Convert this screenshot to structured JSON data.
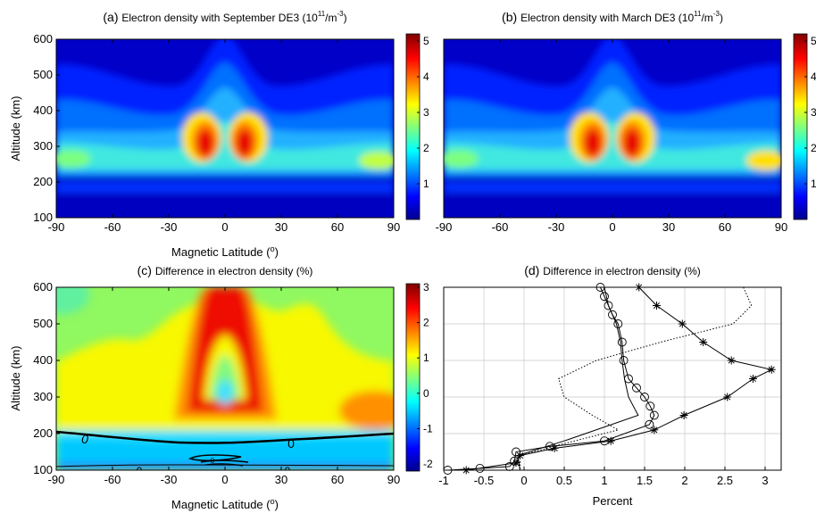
{
  "figure": {
    "panels": [
      {
        "id": "a",
        "type": "heatmap",
        "title_prefix": "(a)",
        "title_text": "Electron density with September DE3 (10",
        "title_sup1": "11",
        "title_mid": "/m",
        "title_sup2": "-3",
        "title_suffix": ")",
        "xlabel": "Magnetic Latitude (",
        "xlabel_sup": "o",
        "xlabel_suffix": ")",
        "ylabel": "Altitude (km)",
        "xticks": [
          "-90",
          "-60",
          "-30",
          "0",
          "30",
          "60",
          "90"
        ],
        "yticks": [
          "100",
          "200",
          "300",
          "400",
          "500",
          "600"
        ],
        "colorbar_ticks": [
          "1",
          "2",
          "3",
          "4",
          "5"
        ],
        "colorbar_range": [
          0,
          5.2
        ]
      },
      {
        "id": "b",
        "type": "heatmap",
        "title_prefix": "(b)",
        "title_text": "Electron density with March DE3 (10",
        "title_sup1": "11",
        "title_mid": "/m",
        "title_sup2": "-3",
        "title_suffix": ")",
        "xticks": [
          "-90",
          "-60",
          "-30",
          "0",
          "30",
          "60",
          "90"
        ],
        "colorbar_ticks": [
          "1",
          "2",
          "3",
          "4",
          "5"
        ],
        "colorbar_range": [
          0,
          5.2
        ]
      },
      {
        "id": "c",
        "type": "heatmap",
        "title_prefix": "(c)",
        "title_text": "Difference in electron density (%)",
        "xlabel": "Magnetic Latitude (",
        "xlabel_sup": "o",
        "xlabel_suffix": ")",
        "ylabel": "Altitude (km)",
        "xticks": [
          "-90",
          "-60",
          "-30",
          "0",
          "30",
          "60",
          "90"
        ],
        "yticks": [
          "100",
          "200",
          "300",
          "400",
          "500",
          "600"
        ],
        "colorbar_ticks": [
          "-2",
          "-1",
          "0",
          "1",
          "2",
          "3"
        ],
        "colorbar_range": [
          -2.2,
          3.1
        ],
        "contour_labels": [
          "0",
          "0",
          "0",
          "0",
          "0"
        ]
      },
      {
        "id": "d",
        "type": "line",
        "title_prefix": "(d)",
        "title_text": "Difference in electron density (%)",
        "xlabel": "Percent",
        "xticks": [
          "-1",
          "-0.5",
          "0",
          "0.5",
          "1",
          "1.5",
          "2",
          "2.5",
          "3"
        ],
        "xlim": [
          -1,
          3.2
        ],
        "ylim": [
          100,
          600
        ]
      }
    ]
  },
  "chart_data": [
    {
      "type": "heatmap",
      "title": "(a) Electron density with September DE3 (10^11/m^-3)",
      "xlabel": "Magnetic Latitude (o)",
      "ylabel": "Altitude (km)",
      "xlim": [
        -90,
        90
      ],
      "ylim": [
        100,
        600
      ],
      "colorbar": {
        "min": 0,
        "max": 5.2,
        "ticks": [
          1,
          2,
          3,
          4,
          5
        ]
      },
      "features": {
        "peaks": [
          {
            "lat": -12,
            "alt": 300,
            "value": 5.0
          },
          {
            "lat": 12,
            "alt": 300,
            "value": 5.0
          },
          {
            "lat": -80,
            "alt": 260,
            "value": 2.3
          },
          {
            "lat": 80,
            "alt": 260,
            "value": 2.4
          }
        ]
      }
    },
    {
      "type": "heatmap",
      "title": "(b) Electron density with March DE3 (10^11/m^-3)",
      "xlabel": "Magnetic Latitude (o)",
      "xlim": [
        -90,
        90
      ],
      "ylim": [
        100,
        600
      ],
      "colorbar": {
        "min": 0,
        "max": 5.2,
        "ticks": [
          1,
          2,
          3,
          4,
          5
        ]
      },
      "features": {
        "peaks": [
          {
            "lat": -12,
            "alt": 300,
            "value": 5.0
          },
          {
            "lat": 12,
            "alt": 300,
            "value": 5.0
          },
          {
            "lat": -80,
            "alt": 260,
            "value": 2.3
          },
          {
            "lat": 80,
            "alt": 260,
            "value": 2.6
          }
        ]
      }
    },
    {
      "type": "heatmap",
      "title": "(c) Difference in electron density (%)",
      "xlabel": "Magnetic Latitude (o)",
      "ylabel": "Altitude (km)",
      "xlim": [
        -90,
        90
      ],
      "ylim": [
        100,
        600
      ],
      "colorbar": {
        "min": -2.2,
        "max": 3.1,
        "ticks": [
          -2,
          -1,
          0,
          1,
          2,
          3
        ]
      },
      "zero_contour_altitude_km": 180,
      "features": {
        "max": {
          "lat": 0,
          "alt": 550,
          "value": 3.0
        },
        "local_min": {
          "lat": 0,
          "alt": 310,
          "value": 0.0
        },
        "min": {
          "lat": 0,
          "alt": 110,
          "value": -2.1
        }
      }
    },
    {
      "type": "line",
      "title": "(d) Difference in electron density (%)",
      "xlabel": "Percent",
      "xlim": [
        -1,
        3.2
      ],
      "ylim": [
        100,
        600
      ],
      "series": [
        {
          "style": "solid-star",
          "points": [
            [
              1.43,
              600
            ],
            [
              1.65,
              550
            ],
            [
              1.97,
              500
            ],
            [
              2.23,
              450
            ],
            [
              2.58,
              400
            ],
            [
              3.08,
              375
            ],
            [
              2.85,
              350
            ],
            [
              2.53,
              300
            ],
            [
              1.99,
              250
            ],
            [
              1.62,
              210
            ],
            [
              1.08,
              180
            ],
            [
              0.38,
              160
            ],
            [
              -0.05,
              140
            ],
            [
              -0.1,
              120
            ],
            [
              -0.72,
              100
            ]
          ]
        },
        {
          "style": "solid-circle",
          "points": [
            [
              0.95,
              600
            ],
            [
              1.0,
              575
            ],
            [
              1.05,
              550
            ],
            [
              1.1,
              525
            ],
            [
              1.17,
              500
            ],
            [
              1.22,
              450
            ],
            [
              1.24,
              400
            ],
            [
              1.3,
              350
            ],
            [
              1.4,
              325
            ],
            [
              1.5,
              300
            ],
            [
              1.57,
              275
            ],
            [
              1.62,
              250
            ],
            [
              1.56,
              225
            ],
            [
              1.0,
              180
            ],
            [
              0.32,
              165
            ],
            [
              -0.1,
              150
            ],
            [
              -0.12,
              125
            ],
            [
              -0.18,
              110
            ],
            [
              -0.55,
              105
            ],
            [
              -0.95,
              100
            ]
          ]
        },
        {
          "style": "solid",
          "points": [
            [
              1.0,
              600
            ],
            [
              1.05,
              550
            ],
            [
              1.15,
              500
            ],
            [
              1.2,
              450
            ],
            [
              1.22,
              400
            ],
            [
              1.25,
              350
            ],
            [
              1.3,
              300
            ],
            [
              1.42,
              250
            ],
            [
              0.5,
              180
            ],
            [
              -0.08,
              140
            ],
            [
              -0.05,
              100
            ]
          ]
        },
        {
          "style": "dotted",
          "points": [
            [
              2.73,
              600
            ],
            [
              2.83,
              550
            ],
            [
              2.6,
              500
            ],
            [
              1.7,
              450
            ],
            [
              0.9,
              400
            ],
            [
              0.43,
              350
            ],
            [
              0.5,
              300
            ],
            [
              0.85,
              250
            ],
            [
              1.17,
              210
            ],
            [
              0.45,
              170
            ],
            [
              -0.05,
              140
            ],
            [
              -0.05,
              100
            ]
          ]
        }
      ]
    }
  ]
}
